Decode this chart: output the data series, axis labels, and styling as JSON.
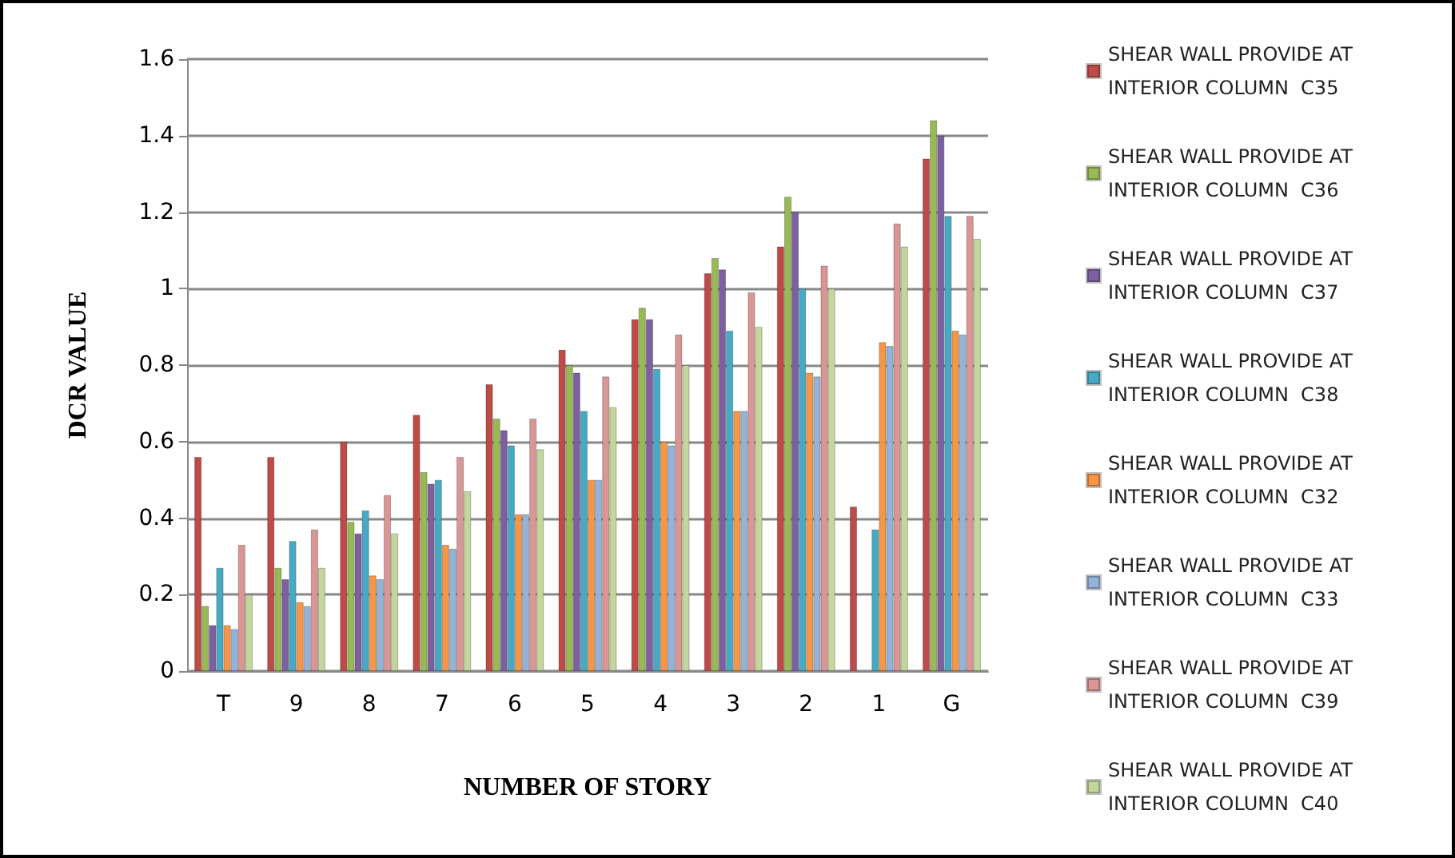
{
  "chart_data": {
    "type": "bar",
    "xlabel": "NUMBER OF STORY",
    "ylabel": "DCR VALUE",
    "categories": [
      "T",
      "9",
      "8",
      "7",
      "6",
      "5",
      "4",
      "3",
      "2",
      "1",
      "G"
    ],
    "series": [
      {
        "name": "SHEAR WALL PROVIDE AT INTERIOR COLUMN  C35",
        "color": "#be4b48",
        "values": [
          0.56,
          0.56,
          0.6,
          0.67,
          0.75,
          0.84,
          0.92,
          1.04,
          1.11,
          0.43,
          1.34
        ]
      },
      {
        "name": "SHEAR WALL PROVIDE AT INTERIOR COLUMN  C36",
        "color": "#98b954",
        "values": [
          0.17,
          0.27,
          0.39,
          0.52,
          0.66,
          0.8,
          0.95,
          1.08,
          1.24,
          null,
          1.44
        ]
      },
      {
        "name": "SHEAR WALL PROVIDE AT INTERIOR COLUMN  C37",
        "color": "#7d60a0",
        "values": [
          0.12,
          0.24,
          0.36,
          0.49,
          0.63,
          0.78,
          0.92,
          1.05,
          1.2,
          null,
          1.4
        ]
      },
      {
        "name": "SHEAR WALL PROVIDE AT INTERIOR COLUMN  C38",
        "color": "#46aac4",
        "values": [
          0.27,
          0.34,
          0.42,
          0.5,
          0.59,
          0.68,
          0.79,
          0.89,
          1.0,
          0.37,
          1.19
        ]
      },
      {
        "name": "SHEAR WALL PROVIDE AT INTERIOR COLUMN  C32",
        "color": "#f79646",
        "values": [
          0.12,
          0.18,
          0.25,
          0.33,
          0.41,
          0.5,
          0.6,
          0.68,
          0.78,
          0.86,
          0.89
        ]
      },
      {
        "name": "SHEAR WALL PROVIDE AT INTERIOR COLUMN  C33",
        "color": "#95b3d7",
        "values": [
          0.11,
          0.17,
          0.24,
          0.32,
          0.41,
          0.5,
          0.59,
          0.68,
          0.77,
          0.85,
          0.88
        ]
      },
      {
        "name": "SHEAR WALL PROVIDE AT INTERIOR COLUMN  C39",
        "color": "#d99694",
        "values": [
          0.33,
          0.37,
          0.46,
          0.56,
          0.66,
          0.77,
          0.88,
          0.99,
          1.06,
          1.17,
          1.19
        ]
      },
      {
        "name": "SHEAR WALL PROVIDE AT INTERIOR COLUMN  C40",
        "color": "#c3d69b",
        "values": [
          0.2,
          0.27,
          0.36,
          0.47,
          0.58,
          0.69,
          0.8,
          0.9,
          1.0,
          1.11,
          1.13
        ]
      }
    ],
    "ylim": [
      0,
      1.6
    ],
    "yticks": [
      0,
      0.2,
      0.4,
      0.6,
      0.8,
      1,
      1.2,
      1.4,
      1.6
    ],
    "grid": "y",
    "legend": "right"
  }
}
